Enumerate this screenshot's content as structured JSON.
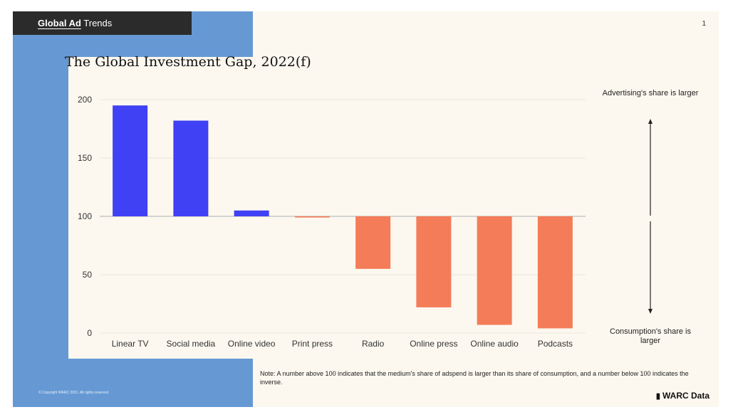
{
  "header": {
    "brand_bold": "Global Ad",
    "brand_rest": " Trends",
    "page_number": "1"
  },
  "footer": {
    "copyright": "© Copyright WARC 2021. All rights reserved.",
    "note": "Note: A number above 100 indicates that the medium's share of adspend is larger than its share of consumption, and a number below 100 indicates the inverse.",
    "logo_text": "WARC Data",
    "logo_icon": "bar-chart-icon"
  },
  "annotations": {
    "top": "Advertising's share is larger",
    "bottom": "Consumption's share is larger"
  },
  "colors": {
    "above": "#4040f5",
    "below": "#f47c58",
    "blue_block": "#6699d4",
    "slide_bg": "#fcf8ef"
  },
  "chart_data": {
    "type": "bar",
    "title": "The Global Investment Gap, 2022(f)",
    "baseline": 100,
    "categories": [
      "Linear TV",
      "Social media",
      "Online video",
      "Print press",
      "Radio",
      "Online press",
      "Online audio",
      "Podcasts"
    ],
    "values": [
      195,
      182,
      105,
      99,
      55,
      22,
      7,
      4
    ],
    "ylim": [
      0,
      200
    ],
    "yticks": [
      0,
      50,
      100,
      150,
      200
    ],
    "grid": true,
    "xlabel": "",
    "ylabel": ""
  }
}
